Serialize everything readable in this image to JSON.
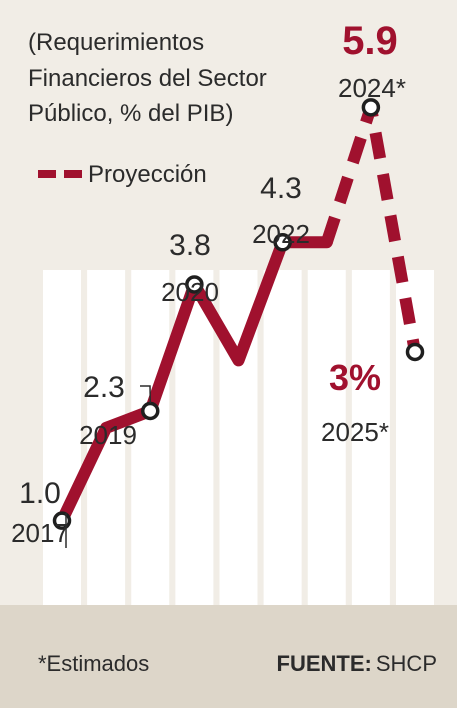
{
  "subtitle": "(Requerimientos Financieros del Sector Público, % del PIB)",
  "subtitle_lines": [
    "(Requerimientos",
    "Financieros del Sector",
    "Público, % del PIB)"
  ],
  "legend": {
    "label": "Proyección"
  },
  "footer": {
    "note": "*Estimados",
    "source_label": "FUENTE:",
    "source": "SHCP"
  },
  "colors": {
    "line": "#a0112e",
    "background": "#f1ede6",
    "column": "#ffffff",
    "footer": "#ddd6c9",
    "text": "#2b2b2b"
  },
  "chart_data": {
    "type": "line",
    "ylabel": "",
    "xlabel": "",
    "subtitle": "(Requerimientos Financieros del Sector Público, % del PIB)",
    "labelled_points": [
      {
        "year": "2017",
        "value": "1.0",
        "x": 2017,
        "y": 1.0
      },
      {
        "year": "2019",
        "value": "2.3",
        "x": 2019,
        "y": 2.3
      },
      {
        "year": "2020",
        "value": "3.8",
        "x": 2020,
        "y": 3.8
      },
      {
        "year": "2022",
        "value": "4.3",
        "x": 2022,
        "y": 4.3
      },
      {
        "year": "2024*",
        "value": "5.9",
        "x": 2024,
        "y": 5.9
      },
      {
        "year": "2025*",
        "value": "3%",
        "x": 2025,
        "y": 3.0
      }
    ],
    "series": [
      {
        "name": "",
        "style": "solid",
        "points": [
          [
            2017,
            1.0
          ],
          [
            2018,
            2.1
          ],
          [
            2019,
            2.3
          ],
          [
            2020,
            3.8
          ],
          [
            2021,
            2.9
          ],
          [
            2022,
            4.3
          ],
          [
            2023,
            4.3
          ]
        ]
      },
      {
        "name": "Proyección",
        "style": "dashed",
        "points": [
          [
            2023,
            4.3
          ],
          [
            2024,
            5.9
          ],
          [
            2025,
            3.0
          ]
        ]
      }
    ],
    "ylim": [
      0.5,
      6.2
    ],
    "xlim": [
      2017,
      2025
    ]
  }
}
